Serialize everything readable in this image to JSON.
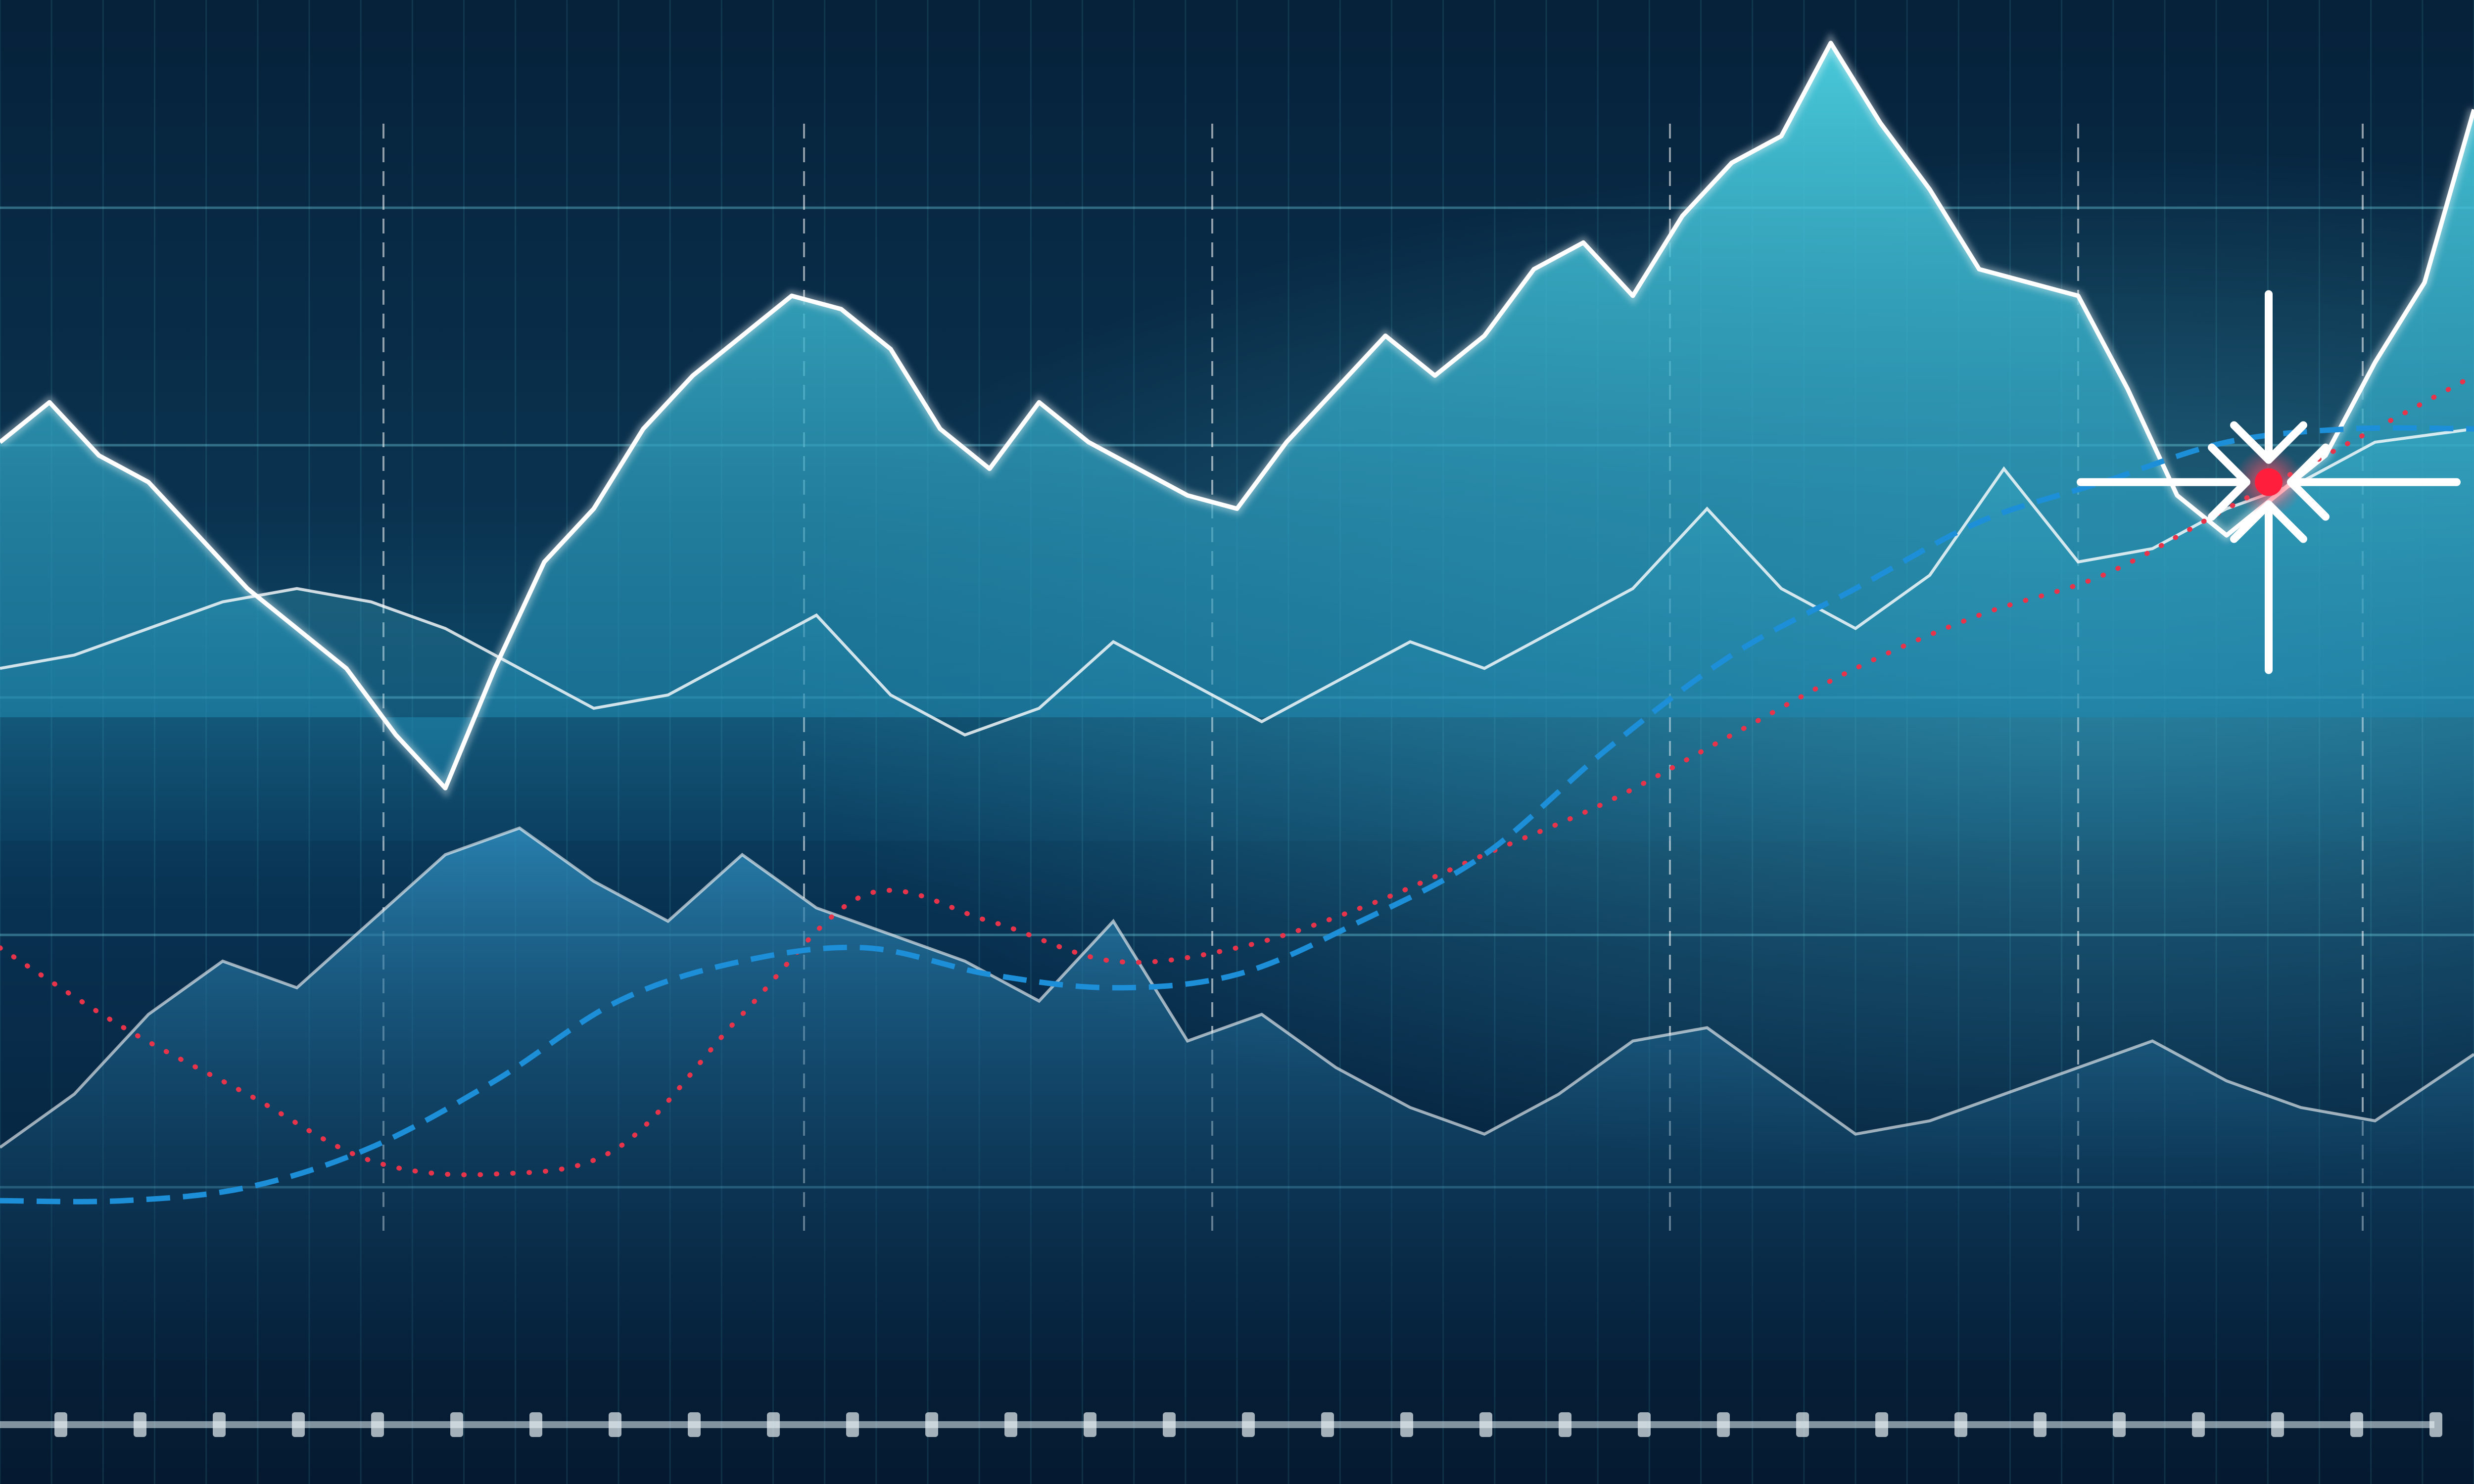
{
  "chart_data": {
    "type": "area",
    "title": "",
    "xlabel": "",
    "ylabel": "",
    "ylim": [
      0,
      100
    ],
    "xlim": [
      0,
      100
    ],
    "grid": true,
    "legend": "none",
    "colors": {
      "primary_area": "#3ec3d8",
      "mid_area": "#2aa6c2",
      "lower_area": "#1b6f9e",
      "bright_line": "#ffffff",
      "dotted_curve": "#e8344a",
      "dashed_curve": "#1d8fd8",
      "crosshair": "#ffffff",
      "target_dot": "#ff1f3d"
    },
    "series": [
      {
        "values_x": [
          0,
          2,
          4,
          6,
          8,
          10,
          12,
          14,
          16,
          18,
          20,
          22,
          24,
          26,
          28,
          30,
          32,
          34,
          36,
          38,
          40,
          42,
          44,
          46,
          48,
          50,
          52,
          54,
          56,
          58,
          60,
          62,
          64,
          66,
          68,
          70,
          72,
          74,
          76,
          78,
          80,
          82,
          84,
          86,
          88,
          90,
          92,
          94,
          96,
          98,
          100
        ],
        "values": [
          69,
          72,
          68,
          66,
          62,
          58,
          55,
          52,
          47,
          43,
          52,
          60,
          64,
          70,
          74,
          77,
          80,
          79,
          76,
          70,
          67,
          72,
          69,
          67,
          65,
          64,
          69,
          73,
          77,
          74,
          77,
          82,
          84,
          80,
          86,
          90,
          92,
          99,
          93,
          88,
          82,
          81,
          80,
          73,
          65,
          62,
          65,
          68,
          75,
          81,
          94
        ]
      },
      {
        "values_x": [
          0,
          3,
          6,
          9,
          12,
          15,
          18,
          21,
          24,
          27,
          30,
          33,
          36,
          39,
          42,
          45,
          48,
          51,
          54,
          57,
          60,
          63,
          66,
          69,
          72,
          75,
          78,
          81,
          84,
          87,
          90,
          93,
          96,
          100
        ],
        "values": [
          52,
          53,
          55,
          57,
          58,
          57,
          55,
          52,
          49,
          50,
          53,
          56,
          50,
          47,
          49,
          54,
          51,
          48,
          51,
          54,
          52,
          55,
          58,
          64,
          58,
          55,
          59,
          67,
          60,
          61,
          64,
          66,
          69,
          70
        ]
      },
      {
        "values_x": [
          0,
          3,
          6,
          9,
          12,
          15,
          18,
          21,
          24,
          27,
          30,
          33,
          36,
          39,
          42,
          45,
          48,
          51,
          54,
          57,
          60,
          63,
          66,
          69,
          72,
          75,
          78,
          81,
          84,
          87,
          90,
          93,
          96,
          100
        ],
        "values": [
          16,
          20,
          26,
          30,
          28,
          33,
          38,
          40,
          36,
          33,
          38,
          34,
          32,
          30,
          27,
          33,
          24,
          26,
          22,
          19,
          17,
          20,
          24,
          25,
          21,
          17,
          18,
          20,
          22,
          24,
          21,
          19,
          18,
          23
        ]
      },
      {
        "values_x": [
          0,
          5,
          10,
          15,
          20,
          25,
          30,
          35,
          40,
          45,
          50,
          55,
          60,
          65,
          70,
          75,
          80,
          85,
          90,
          95,
          100
        ],
        "values": [
          31,
          25,
          20,
          15,
          14,
          16,
          26,
          35,
          33,
          30,
          31,
          34,
          38,
          42,
          47,
          52,
          56,
          59,
          64,
          69,
          74
        ]
      },
      {
        "values_x": [
          0,
          5,
          10,
          15,
          20,
          25,
          30,
          35,
          40,
          45,
          50,
          55,
          60,
          65,
          70,
          75,
          80,
          85,
          90,
          95,
          100
        ],
        "values": [
          12,
          12,
          13,
          16,
          21,
          27,
          30,
          31,
          29,
          28,
          29,
          33,
          38,
          46,
          53,
          58,
          63,
          66,
          69,
          70,
          70
        ]
      }
    ],
    "target": {
      "x": 91.7,
      "y": 66
    }
  }
}
